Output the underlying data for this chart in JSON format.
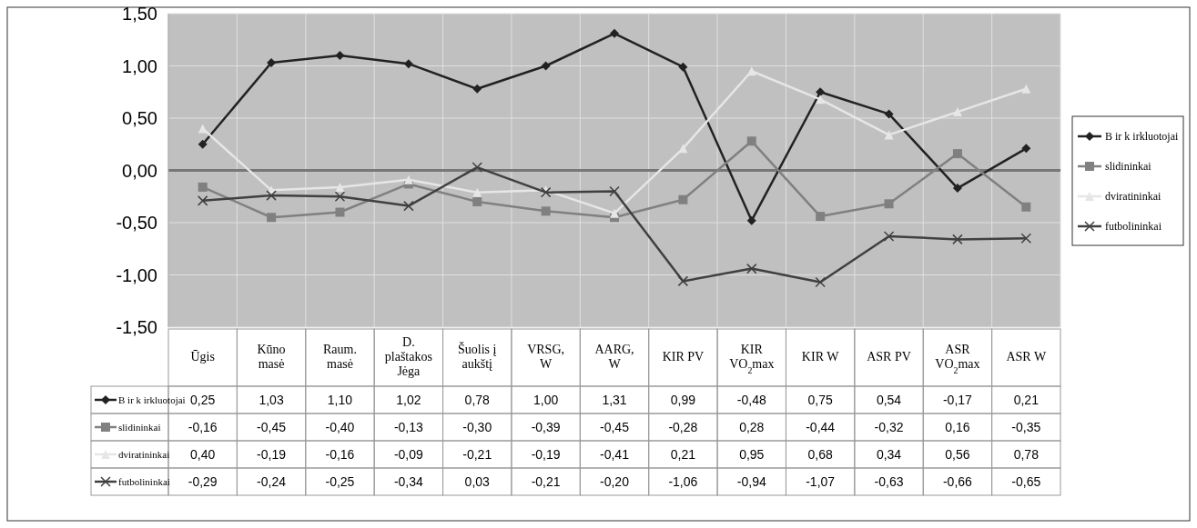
{
  "chart_data": {
    "type": "line",
    "categories": [
      "Ūgis",
      "Kūno masė",
      "Raum. masė",
      "D. plaštakos Jėga",
      "Šuolis į aukštį",
      "VRSG, W",
      "AARG, W",
      "KIR PV",
      "KIR VO$_{2}$max",
      "KIR W",
      "ASR PV",
      "ASR VO$_{2}$max",
      "ASR W"
    ],
    "series": [
      {
        "name": "B ir k irkluotojai",
        "color": "#222222",
        "marker": "diamond",
        "values": [
          0.25,
          1.03,
          1.1,
          1.02,
          0.78,
          1.0,
          1.31,
          0.99,
          -0.48,
          0.75,
          0.54,
          -0.17,
          0.21
        ],
        "value_labels": [
          "0,25",
          "1,03",
          "1,10",
          "1,02",
          "0,78",
          "1,00",
          "1,31",
          "0,99",
          "-0,48",
          "0,75",
          "0,54",
          "-0,17",
          "0,21"
        ]
      },
      {
        "name": "slidininkai",
        "color": "#808080",
        "marker": "square",
        "values": [
          -0.16,
          -0.45,
          -0.4,
          -0.13,
          -0.3,
          -0.39,
          -0.45,
          -0.28,
          0.28,
          -0.44,
          -0.32,
          0.16,
          -0.35
        ],
        "value_labels": [
          "-0,16",
          "-0,45",
          "-0,40",
          "-0,13",
          "-0,30",
          "-0,39",
          "-0,45",
          "-0,28",
          "0,28",
          "-0,44",
          "-0,32",
          "0,16",
          "-0,35"
        ]
      },
      {
        "name": "dviratininkai",
        "color": "#e6e6e6",
        "marker": "triangle",
        "values": [
          0.4,
          -0.19,
          -0.16,
          -0.09,
          -0.21,
          -0.19,
          -0.41,
          0.21,
          0.95,
          0.68,
          0.34,
          0.56,
          0.78
        ],
        "value_labels": [
          "0,40",
          "-0,19",
          "-0,16",
          "-0,09",
          "-0,21",
          "-0,19",
          "-0,41",
          "0,21",
          "0,95",
          "0,68",
          "0,34",
          "0,56",
          "0,78"
        ]
      },
      {
        "name": "futbolininkai",
        "color": "#404040",
        "marker": "cross",
        "values": [
          -0.29,
          -0.24,
          -0.25,
          -0.34,
          0.03,
          -0.21,
          -0.2,
          -1.06,
          -0.94,
          -1.07,
          -0.63,
          -0.66,
          -0.65
        ],
        "value_labels": [
          "-0,29",
          "-0,24",
          "-0,25",
          "-0,34",
          "0,03",
          "-0,21",
          "-0,20",
          "-1,06",
          "-0,94",
          "-1,07",
          "-0,63",
          "-0,66",
          "-0,65"
        ]
      }
    ],
    "ylim": [
      -1.5,
      1.5
    ],
    "yticks": [
      {
        "value": -1.5,
        "label": "-1,50"
      },
      {
        "value": -1,
        "label": "-1,00"
      },
      {
        "value": -0.5,
        "label": "-0,50"
      },
      {
        "value": 0,
        "label": "0,00"
      },
      {
        "value": 0.5,
        "label": "0,50"
      },
      {
        "value": 1,
        "label": "1,00"
      },
      {
        "value": 1.5,
        "label": "1,50"
      }
    ],
    "grid": true,
    "legend": "right",
    "line_style": "solid"
  }
}
